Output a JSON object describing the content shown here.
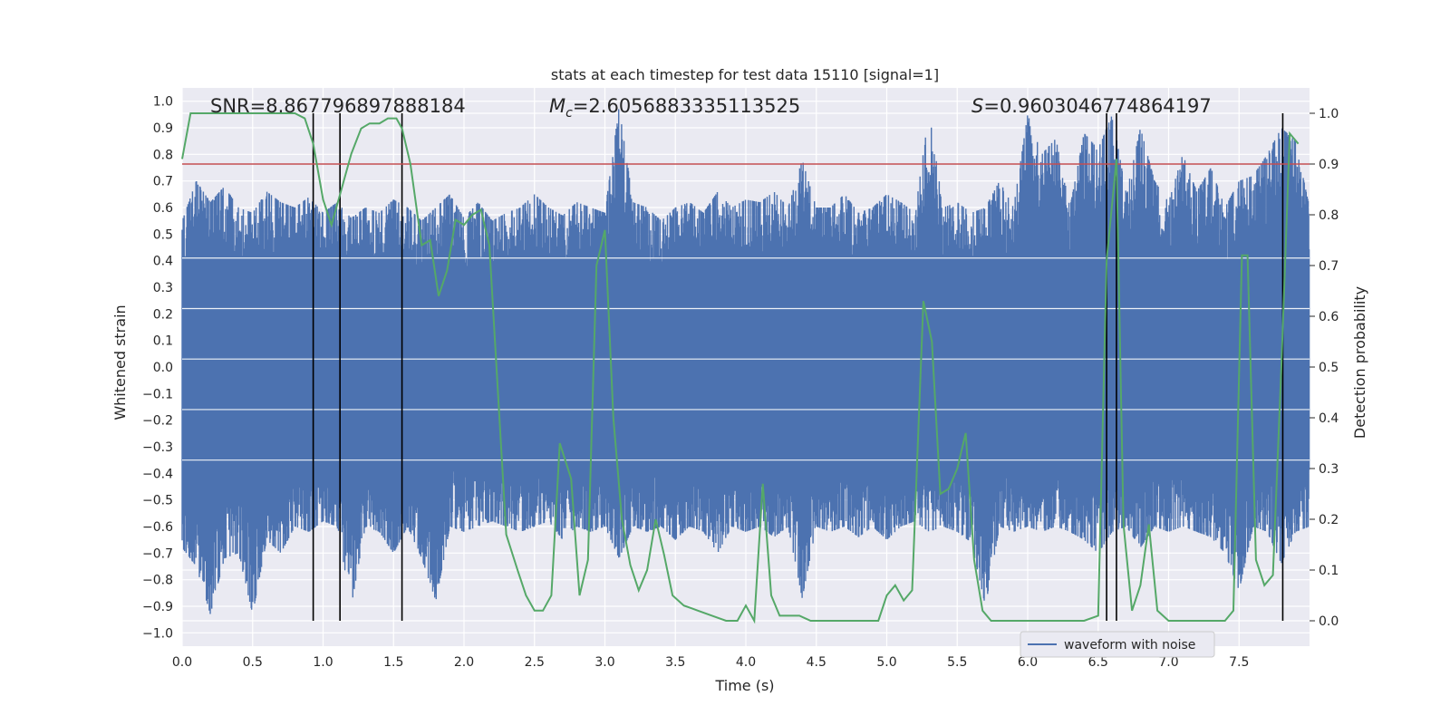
{
  "chart_data": {
    "type": "line",
    "title": "stats at each timestep for test data 15110 [signal=1]",
    "xlabel": "Time (s)",
    "ylabel": "Whitened strain",
    "y2label": "Detection probability",
    "xlim": [
      0.0,
      8.0
    ],
    "ylim": [
      -1.05,
      1.05
    ],
    "y2lim": [
      -0.05,
      1.05
    ],
    "xticks": [
      0.0,
      0.5,
      1.0,
      1.5,
      2.0,
      2.5,
      3.0,
      3.5,
      4.0,
      4.5,
      5.0,
      5.5,
      6.0,
      6.5,
      7.0,
      7.5
    ],
    "yticks": [
      -1.0,
      -0.9,
      -0.8,
      -0.7,
      -0.6,
      -0.5,
      -0.4,
      -0.3,
      -0.2,
      -0.1,
      0.0,
      0.1,
      0.2,
      0.3,
      0.4,
      0.5,
      0.6,
      0.7,
      0.8,
      0.9,
      1.0
    ],
    "y2ticks": [
      0.0,
      0.1,
      0.2,
      0.3,
      0.4,
      0.5,
      0.6,
      0.7,
      0.8,
      0.9,
      1.0
    ],
    "grid": true,
    "legend_position": "lower-center",
    "annotations": {
      "snr": "SNR=8.867796897888184",
      "mc": "=2.6056883335113525",
      "s": "=0.9603046774864197"
    },
    "threshold": {
      "y2": 0.9,
      "color": "#c44e52"
    },
    "vertical_lines_x": [
      0.93,
      1.12,
      1.56,
      6.56,
      6.63,
      7.81
    ],
    "series": [
      {
        "name": "waveform with noise",
        "axis": "left",
        "color": "#4c72b0",
        "envelope_x": [
          0.0,
          0.1,
          0.2,
          0.3,
          0.4,
          0.5,
          0.6,
          0.7,
          0.8,
          0.9,
          1.0,
          1.1,
          1.2,
          1.3,
          1.4,
          1.5,
          1.6,
          1.7,
          1.8,
          1.9,
          2.0,
          2.1,
          2.2,
          2.3,
          2.4,
          2.5,
          2.6,
          2.7,
          2.8,
          2.9,
          3.0,
          3.1,
          3.2,
          3.3,
          3.4,
          3.5,
          3.6,
          3.7,
          3.8,
          3.9,
          4.0,
          4.1,
          4.2,
          4.3,
          4.4,
          4.5,
          4.6,
          4.7,
          4.8,
          4.9,
          5.0,
          5.1,
          5.2,
          5.3,
          5.4,
          5.5,
          5.6,
          5.7,
          5.8,
          5.9,
          6.0,
          6.1,
          6.2,
          6.3,
          6.4,
          6.5,
          6.6,
          6.7,
          6.8,
          6.9,
          7.0,
          7.1,
          7.2,
          7.3,
          7.4,
          7.5,
          7.6,
          7.7,
          7.8,
          7.9,
          8.0
        ],
        "upper": [
          0.55,
          0.7,
          0.62,
          0.68,
          0.6,
          0.58,
          0.66,
          0.62,
          0.6,
          0.64,
          0.58,
          0.62,
          0.56,
          0.6,
          0.58,
          0.63,
          0.6,
          0.55,
          0.6,
          0.65,
          0.56,
          0.62,
          0.55,
          0.58,
          0.6,
          0.65,
          0.6,
          0.57,
          0.62,
          0.6,
          0.58,
          0.98,
          0.62,
          0.6,
          0.55,
          0.6,
          0.62,
          0.58,
          0.66,
          0.6,
          0.63,
          0.62,
          0.66,
          0.6,
          0.78,
          0.6,
          0.6,
          0.65,
          0.58,
          0.6,
          0.65,
          0.62,
          0.58,
          0.96,
          0.6,
          0.62,
          0.58,
          0.6,
          0.7,
          0.6,
          0.95,
          0.8,
          0.86,
          0.6,
          0.88,
          0.82,
          0.95,
          0.65,
          0.9,
          0.7,
          0.62,
          0.8,
          0.66,
          0.75,
          0.6,
          0.7,
          0.72,
          0.8,
          0.9,
          0.85,
          0.6
        ],
        "lower": [
          -0.68,
          -0.75,
          -0.93,
          -0.72,
          -0.7,
          -0.93,
          -0.65,
          -0.7,
          -0.6,
          -0.62,
          -0.58,
          -0.6,
          -0.9,
          -0.6,
          -0.62,
          -0.7,
          -0.6,
          -0.72,
          -0.88,
          -0.6,
          -0.62,
          -0.6,
          -0.58,
          -0.6,
          -0.62,
          -0.6,
          -0.58,
          -0.65,
          -0.6,
          -0.62,
          -0.6,
          -0.72,
          -0.6,
          -0.62,
          -0.6,
          -0.65,
          -0.6,
          -0.62,
          -0.7,
          -0.6,
          -0.62,
          -0.6,
          -0.64,
          -0.6,
          -0.87,
          -0.6,
          -0.62,
          -0.6,
          -0.64,
          -0.6,
          -0.65,
          -0.6,
          -0.58,
          -0.62,
          -0.6,
          -0.62,
          -0.66,
          -0.9,
          -0.6,
          -0.62,
          -0.6,
          -0.62,
          -0.6,
          -0.62,
          -0.65,
          -0.7,
          -0.62,
          -0.6,
          -0.68,
          -0.6,
          -0.62,
          -0.6,
          -0.62,
          -0.64,
          -0.7,
          -0.84,
          -0.6,
          -0.62,
          -0.74,
          -0.62,
          -0.6
        ]
      },
      {
        "name": "detection probability",
        "axis": "right",
        "color": "#55a868",
        "x": [
          0.0,
          0.06,
          0.2,
          0.4,
          0.6,
          0.8,
          0.87,
          0.93,
          1.0,
          1.06,
          1.12,
          1.2,
          1.27,
          1.33,
          1.4,
          1.46,
          1.52,
          1.56,
          1.62,
          1.7,
          1.76,
          1.82,
          1.88,
          1.94,
          2.0,
          2.06,
          2.12,
          2.18,
          2.22,
          2.3,
          2.38,
          2.44,
          2.5,
          2.56,
          2.62,
          2.68,
          2.76,
          2.82,
          2.88,
          2.94,
          3.0,
          3.06,
          3.12,
          3.18,
          3.24,
          3.3,
          3.36,
          3.42,
          3.48,
          3.56,
          3.66,
          3.76,
          3.86,
          3.94,
          4.0,
          4.06,
          4.12,
          4.18,
          4.24,
          4.3,
          4.38,
          4.46,
          4.54,
          4.62,
          4.7,
          4.78,
          4.86,
          4.94,
          5.0,
          5.06,
          5.12,
          5.18,
          5.26,
          5.32,
          5.38,
          5.44,
          5.5,
          5.56,
          5.62,
          5.68,
          5.74,
          5.82,
          5.9,
          6.0,
          6.1,
          6.2,
          6.3,
          6.4,
          6.5,
          6.56,
          6.63,
          6.68,
          6.74,
          6.8,
          6.86,
          6.92,
          7.0,
          7.1,
          7.2,
          7.3,
          7.4,
          7.46,
          7.52,
          7.56,
          7.62,
          7.68,
          7.74,
          7.8,
          7.86,
          7.92
        ],
        "y": [
          0.91,
          1.0,
          1.0,
          1.0,
          1.0,
          1.0,
          0.99,
          0.94,
          0.83,
          0.78,
          0.84,
          0.92,
          0.97,
          0.98,
          0.98,
          0.99,
          0.99,
          0.97,
          0.9,
          0.74,
          0.75,
          0.64,
          0.69,
          0.79,
          0.78,
          0.8,
          0.81,
          0.74,
          0.55,
          0.17,
          0.1,
          0.05,
          0.02,
          0.02,
          0.05,
          0.35,
          0.28,
          0.05,
          0.12,
          0.7,
          0.77,
          0.4,
          0.2,
          0.11,
          0.06,
          0.1,
          0.2,
          0.13,
          0.05,
          0.03,
          0.02,
          0.01,
          0.0,
          0.0,
          0.03,
          0.0,
          0.27,
          0.05,
          0.01,
          0.01,
          0.01,
          0.0,
          0.0,
          0.0,
          0.0,
          0.0,
          0.0,
          0.0,
          0.05,
          0.07,
          0.04,
          0.06,
          0.63,
          0.55,
          0.25,
          0.26,
          0.3,
          0.37,
          0.12,
          0.02,
          0.0,
          0.0,
          0.0,
          0.0,
          0.0,
          0.0,
          0.0,
          0.0,
          0.01,
          0.71,
          0.91,
          0.19,
          0.02,
          0.07,
          0.19,
          0.02,
          0.0,
          0.0,
          0.0,
          0.0,
          0.0,
          0.02,
          0.72,
          0.72,
          0.12,
          0.07,
          0.09,
          0.5,
          0.96,
          0.94
        ]
      }
    ]
  }
}
